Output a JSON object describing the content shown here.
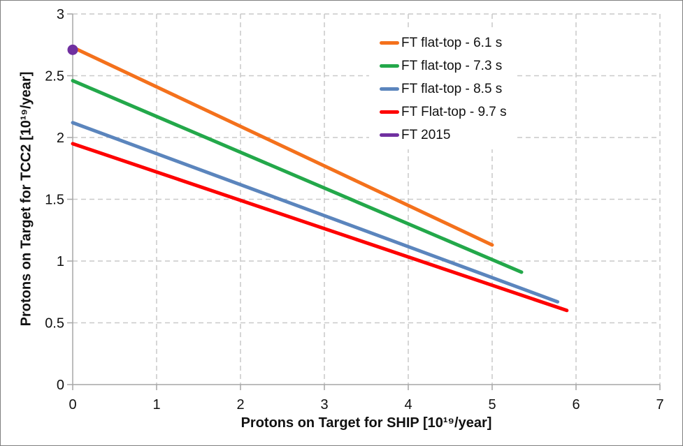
{
  "chart_data": {
    "type": "line",
    "title": "",
    "xlabel": "Protons on Target for SHIP [10¹⁹/year]",
    "ylabel": "Protons on Target for TCC2 [10¹⁹/year]",
    "xlim": [
      0,
      7
    ],
    "ylim": [
      0,
      3
    ],
    "x_tick_values": [
      0,
      1,
      2,
      3,
      4,
      5,
      6,
      7
    ],
    "x_tick_labels": [
      "0",
      "1",
      "2",
      "3",
      "4",
      "5",
      "6",
      "7"
    ],
    "y_tick_values": [
      0,
      0.5,
      1,
      1.5,
      2,
      2.5,
      3
    ],
    "y_tick_labels": [
      "0",
      "0.5",
      "1",
      "1.5",
      "2",
      "2.5",
      "3"
    ],
    "grid": "dashed gray, horizontal and vertical at every tick",
    "legend_position": "upper-right inside plot, white background, no border",
    "series": [
      {
        "name": "FT flat-top - 6.1 s",
        "type": "line",
        "color": "#F4711C",
        "points": [
          [
            0,
            2.73
          ],
          [
            5.0,
            1.13
          ]
        ]
      },
      {
        "name": "FT flat-top - 7.3 s",
        "type": "line",
        "color": "#23A84A",
        "points": [
          [
            0,
            2.46
          ],
          [
            5.35,
            0.91
          ]
        ]
      },
      {
        "name": "FT flat-top - 8.5 s",
        "type": "line",
        "color": "#5B85BD",
        "points": [
          [
            0,
            2.12
          ],
          [
            5.78,
            0.67
          ]
        ]
      },
      {
        "name": "FT Flat-top - 9.7 s",
        "type": "line",
        "color": "#FE0000",
        "points": [
          [
            0,
            1.95
          ],
          [
            5.89,
            0.6
          ]
        ]
      },
      {
        "name": "FT 2015",
        "type": "point",
        "color": "#7030A0",
        "points": [
          [
            0,
            2.71
          ]
        ]
      }
    ]
  },
  "style": {
    "grid_color": "#C9C9C9",
    "axis_color": "#A6A6A6",
    "tick_label_color": "#111111",
    "line_width": 5,
    "marker_radius": 7.5,
    "background": "#FFFFFF",
    "border_color": "#7F7F7F"
  }
}
